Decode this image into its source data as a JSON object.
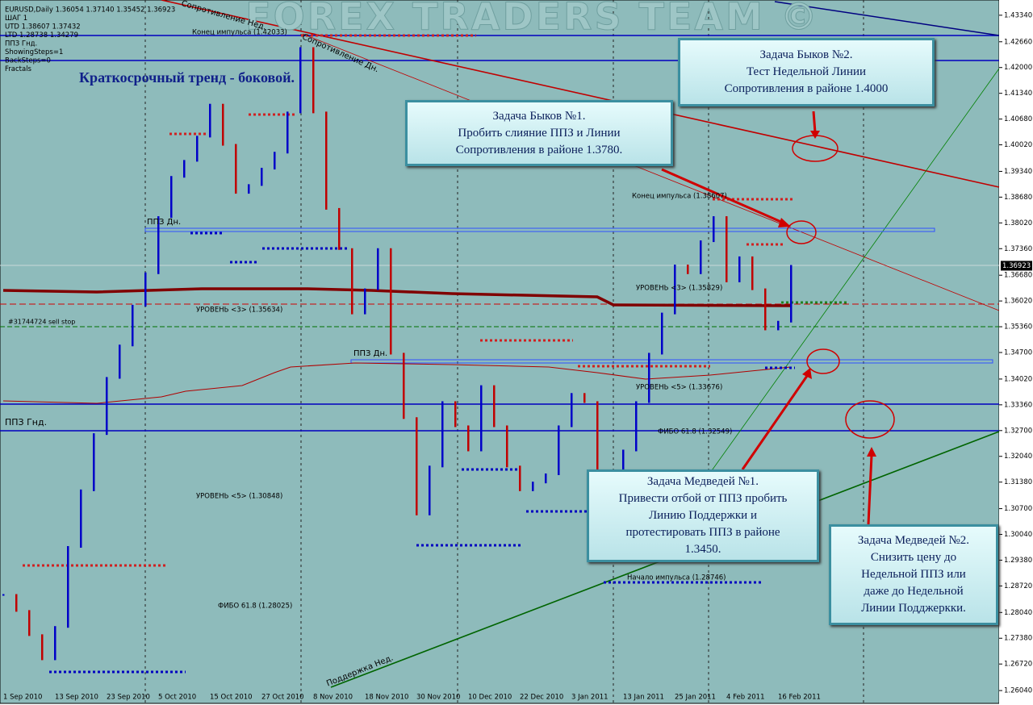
{
  "chart_data": {
    "type": "candlestick",
    "title": "Краткосрочный тренд - боковой.",
    "watermark": "FOREX TRADERS TEAM ©",
    "info": [
      "EURUSD,Daily  1.36054 1.37140 1.35452 1.36923",
      "ШАГ 1",
      "UTD 1.38607 1.37432",
      "LTD 1.28738 1.34279",
      "ППЗ Гнд.",
      "ShowingSteps=1",
      "BackSteps=0",
      "Fractals"
    ],
    "closes": [
      1.2849,
      1.2808,
      1.2746,
      1.2684,
      1.2767,
      1.2972,
      1.3117,
      1.3261,
      1.3405,
      1.3488,
      1.359,
      1.3673,
      1.3817,
      1.392,
      1.3961,
      1.4023,
      1.4105,
      1.4002,
      1.3879,
      1.3899,
      1.3941,
      1.3982,
      1.4085,
      1.425,
      1.4085,
      1.3838,
      1.3735,
      1.357,
      1.3632,
      1.3735,
      1.3467,
      1.3302,
      1.3055,
      1.3178,
      1.3343,
      1.3281,
      1.3219,
      1.3384,
      1.3281,
      1.3178,
      1.3117,
      1.3137,
      1.3158,
      1.3281,
      1.3364,
      1.3343,
      1.3137,
      1.2952,
      1.3219,
      1.3343,
      1.3467,
      1.357,
      1.3693,
      1.3673,
      1.3755,
      1.3817,
      1.3652,
      1.3714,
      1.3632,
      1.3529,
      1.3549,
      1.3692
    ],
    "up_color": "#0000c8",
    "down_color": "#c00000",
    "ylim": [
      1.2567,
      1.4373
    ],
    "yticks": [
      {
        "value": 1.4334,
        "label": "1.43340"
      },
      {
        "value": 1.4266,
        "label": "1.42660"
      },
      {
        "value": 1.42,
        "label": "1.42000"
      },
      {
        "value": 1.4134,
        "label": "1.41340"
      },
      {
        "value": 1.4068,
        "label": "1.40680"
      },
      {
        "value": 1.4002,
        "label": "1.40020"
      },
      {
        "value": 1.3934,
        "label": "1.39340"
      },
      {
        "value": 1.3868,
        "label": "1.38680"
      },
      {
        "value": 1.3802,
        "label": "1.38020"
      },
      {
        "value": 1.3736,
        "label": "1.37360"
      },
      {
        "value": 1.3668,
        "label": "1.36680"
      },
      {
        "value": 1.3602,
        "label": "1.36020"
      },
      {
        "value": 1.3536,
        "label": "1.35360"
      },
      {
        "value": 1.347,
        "label": "1.34700"
      },
      {
        "value": 1.3402,
        "label": "1.34020"
      },
      {
        "value": 1.3336,
        "label": "1.33360"
      },
      {
        "value": 1.327,
        "label": "1.32700"
      },
      {
        "value": 1.3204,
        "label": "1.32040"
      },
      {
        "value": 1.3138,
        "label": "1.31380"
      },
      {
        "value": 1.307,
        "label": "1.30700"
      },
      {
        "value": 1.3004,
        "label": "1.30040"
      },
      {
        "value": 1.2938,
        "label": "1.29380"
      },
      {
        "value": 1.2872,
        "label": "1.28720"
      },
      {
        "value": 1.2804,
        "label": "1.28040"
      },
      {
        "value": 1.2738,
        "label": "1.27380"
      },
      {
        "value": 1.2672,
        "label": "1.26720"
      },
      {
        "value": 1.2604,
        "label": "1.26040"
      }
    ],
    "last_price": {
      "value": 1.36923,
      "label": "1.36923"
    },
    "date_labels": [
      "1 Sep 2010",
      "13 Sep 2010",
      "23 Sep 2010",
      "5 Oct 2010",
      "15 Oct 2010",
      "27 Oct 2010",
      "8 Nov 2010",
      "18 Nov 2010",
      "30 Nov 2010",
      "10 Dec 2010",
      "22 Dec 2010",
      "3 Jan 2011",
      "13 Jan 2011",
      "25 Jan 2011",
      "4 Feb 2011",
      "16 Feb 2011"
    ],
    "levels": [
      "Конец импульса      (1.42033)",
      "Сопротивление Дн.",
      "ППЗ Дн.",
      "УРОВЕНЬ <3>      (1.35634)",
      "#31744724 sell stop",
      "ППЗ Дн.",
      "УРОВЕНЬ <5>      (1.30848)",
      "ФИБО 61.8      (1.28025)",
      "ППЗ Гнд.",
      "Конец импульса      (1.38607)",
      "УРОВЕНЬ <3>      (1.35829)",
      "УРОВЕНЬ <5>      (1.33676)",
      "ФИБО 61.8      (1.32549)",
      "Начало импульса      (1.28746)",
      "Поддержка Нед.",
      "Сопротивление Нед."
    ],
    "annotations": [
      [
        "Задача Быков №1.",
        "Пробить слияние ППЗ и Линии",
        "Сопротивления в районе 1.3780."
      ],
      [
        "Задача Быков №2.",
        "Тест Недельной Линии",
        "Сопротивления в районе 1.4000"
      ],
      [
        "Задача Медведей №1.",
        "Привести отбой от ППЗ пробить",
        "Линию Поддержки и",
        "протестировать ППЗ  в районе",
        "1.3450."
      ],
      [
        "Задача Медведей №2.",
        "Снизить цену до",
        "Недельной ППЗ или",
        "даже до Недельной",
        "Линии Подджеркки."
      ]
    ]
  }
}
